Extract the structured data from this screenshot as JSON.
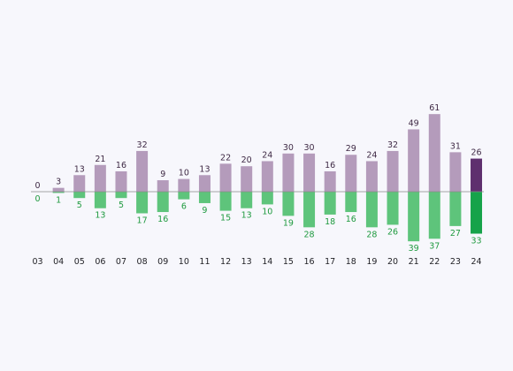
{
  "chart_data": {
    "type": "bar",
    "categories": [
      "03",
      "04",
      "05",
      "06",
      "07",
      "08",
      "09",
      "10",
      "11",
      "12",
      "13",
      "14",
      "15",
      "16",
      "17",
      "18",
      "19",
      "20",
      "21",
      "22",
      "23",
      "24"
    ],
    "series": [
      {
        "values": [
          0,
          3,
          13,
          21,
          16,
          32,
          9,
          10,
          13,
          22,
          20,
          24,
          30,
          30,
          16,
          29,
          24,
          32,
          49,
          61,
          31,
          26
        ],
        "color": "#b49bbb",
        "highlight_color": "#5e2f6e",
        "label_color": "#3f2a45"
      },
      {
        "values": [
          0,
          -1,
          -5,
          -13,
          -5,
          -17,
          -16,
          -6,
          -9,
          -15,
          -13,
          -10,
          -19,
          -28,
          -18,
          -16,
          -28,
          -26,
          -39,
          -37,
          -27,
          -33
        ],
        "labels": [
          "0",
          "1",
          "5",
          "13",
          "5",
          "17",
          "16",
          "6",
          "9",
          "15",
          "13",
          "10",
          "19",
          "28",
          "18",
          "16",
          "28",
          "26",
          "39",
          "37",
          "27",
          "33"
        ],
        "color": "#5ec47b",
        "highlight_color": "#16a34a",
        "label_color": "#1f9a3f"
      }
    ],
    "highlight_category": "24",
    "baseline_color": "#8a8a8a",
    "grid": false,
    "legend": "none",
    "ylim": [
      -39,
      61
    ]
  }
}
